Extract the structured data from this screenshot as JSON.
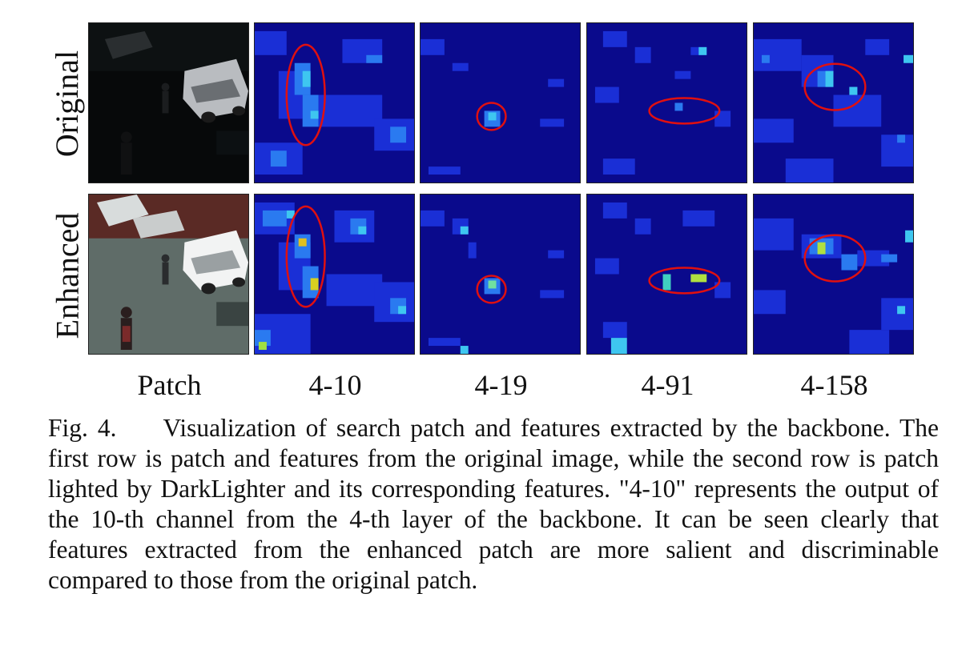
{
  "figure": {
    "rows": [
      {
        "label": "Original"
      },
      {
        "label": "Enhanced"
      }
    ],
    "columns": [
      "Patch",
      "4-10",
      "4-19",
      "4-91",
      "4-158"
    ],
    "caption": {
      "prefix": "Fig. 4.",
      "text": "Visualization of search patch and features extracted by the backbone. The first row is patch and features from the original image, while the second row is patch lighted by DarkLighter and its corresponding features. \"4-10\" represents the output of the 10-th channel from the 4-th layer of the backbone. It can be seen clearly that features extracted from the enhanced patch are more salient and discriminable compared to those from the original patch."
    },
    "colors": {
      "heatmap_bg": "#0a0a8c",
      "highlight_ellipse": "#e01010"
    }
  }
}
